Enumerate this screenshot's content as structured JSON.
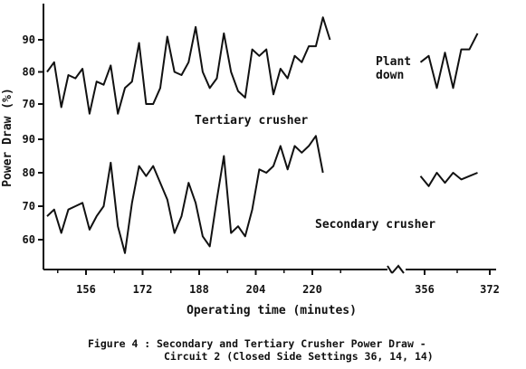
{
  "chart_data": {
    "type": "line",
    "xlabel": "Operating time (minutes)",
    "ylabel": "Power Draw (%)",
    "x_ticks_main": [
      156,
      172,
      188,
      204,
      220
    ],
    "x_ticks_after_break": [
      356,
      372
    ],
    "y_ticks_tertiary": [
      70,
      80,
      90
    ],
    "y_ticks_secondary": [
      60,
      70,
      80,
      90
    ],
    "annotation": "Plant\ndown",
    "series": [
      {
        "name": "Tertiary crusher",
        "segments": [
          {
            "x": [
              145,
              147,
              149,
              151,
              153,
              155,
              157,
              159,
              161,
              163,
              165,
              167,
              169,
              171,
              173,
              175,
              177,
              179,
              181,
              183,
              185,
              187,
              189,
              191,
              193,
              195,
              197,
              199,
              201,
              203,
              205,
              207,
              209,
              211,
              213,
              215,
              217,
              219,
              221,
              223,
              225,
              227,
              229,
              231,
              233
            ],
            "y": [
              80,
              83,
              69,
              79,
              78,
              81,
              67,
              77,
              76,
              82,
              67,
              75,
              77,
              89,
              70,
              70,
              75,
              91,
              80,
              79,
              83,
              94,
              80,
              75,
              78,
              92,
              80,
              74,
              72,
              87,
              85,
              87,
              73,
              81,
              78,
              85,
              83,
              88,
              88,
              97,
              90,
              null,
              null,
              null,
              null
            ]
          },
          {
            "x": [
              355,
              357,
              359,
              361,
              363,
              365,
              367,
              369
            ],
            "y": [
              83,
              85,
              75,
              86,
              75,
              87,
              87,
              92
            ]
          }
        ]
      },
      {
        "name": "Secondary crusher",
        "segments": [
          {
            "x": [
              145,
              147,
              149,
              151,
              153,
              155,
              157,
              159,
              161,
              163,
              165,
              167,
              169,
              171,
              173,
              175,
              177,
              179,
              181,
              183,
              185,
              187,
              189,
              191,
              193,
              195,
              197,
              199,
              201,
              203,
              205,
              207,
              209,
              211,
              213,
              215,
              217,
              219,
              221,
              223,
              225,
              227,
              229,
              231,
              233,
              235
            ],
            "y": [
              67,
              69,
              62,
              69,
              70,
              71,
              63,
              67,
              70,
              83,
              64,
              56,
              71,
              82,
              79,
              82,
              77,
              72,
              62,
              67,
              77,
              71,
              61,
              58,
              72,
              85,
              62,
              64,
              61,
              69,
              81,
              80,
              82,
              88,
              81,
              88,
              86,
              88,
              91,
              80,
              null,
              null,
              null,
              null,
              null,
              null
            ]
          },
          {
            "x": [
              355,
              357,
              359,
              361,
              363,
              365,
              367,
              369
            ],
            "y": [
              79,
              76,
              80,
              77,
              80,
              78,
              79,
              80
            ]
          }
        ]
      }
    ]
  },
  "caption": {
    "label": "Figure 4 :",
    "line1": "Secondary and Tertiary Crusher Power Draw -",
    "line2": "Circuit 2 (Closed Side Settings 36, 14, 14)"
  }
}
